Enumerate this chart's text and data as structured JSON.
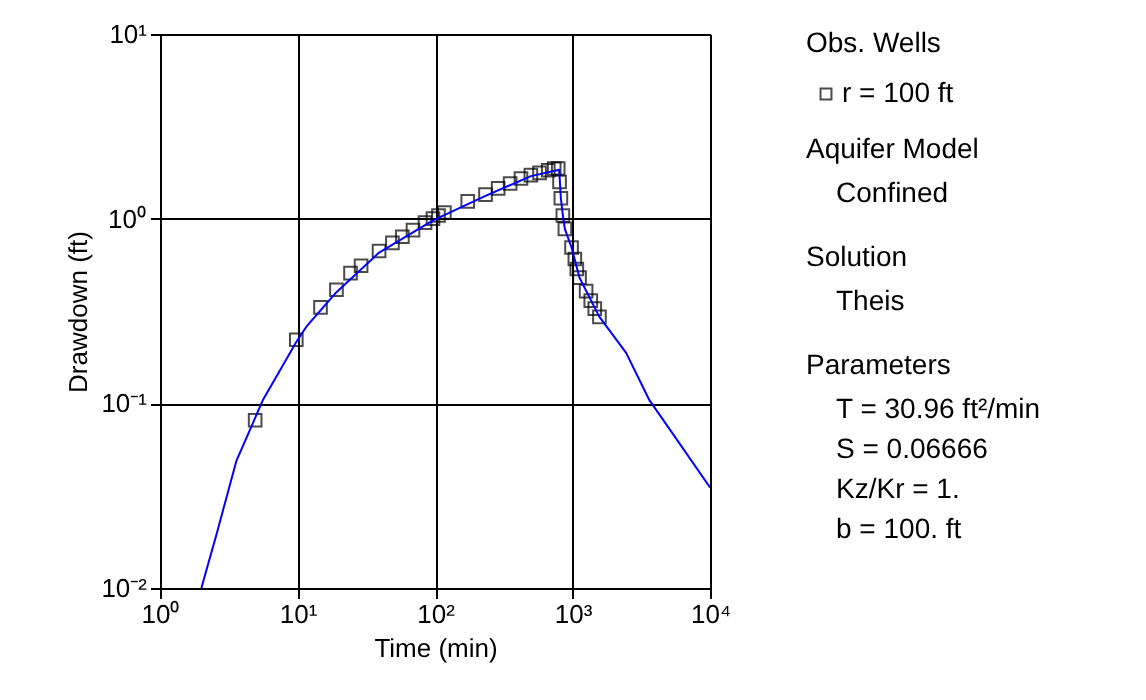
{
  "chart_data": {
    "type": "scatter",
    "xlabel": "Time (min)",
    "ylabel": "Drawdown (ft)",
    "log": "xy",
    "grid": true,
    "legend": "right",
    "legend_title": "Obs. Wells",
    "marker": "square",
    "xlim": [
      1,
      10000
    ],
    "ylim": [
      0.01,
      10
    ],
    "xticks": [
      {
        "value": 1,
        "label": "10⁰"
      },
      {
        "value": 10,
        "label": "10¹"
      },
      {
        "value": 100,
        "label": "10²"
      },
      {
        "value": 1000,
        "label": "10³"
      },
      {
        "value": 10000,
        "label": "10⁴"
      }
    ],
    "yticks": [
      {
        "value": 0.01,
        "label": "10⁻²"
      },
      {
        "value": 0.1,
        "label": "10⁻¹"
      },
      {
        "value": 1,
        "label": "10⁰"
      },
      {
        "value": 10,
        "label": "10¹"
      }
    ],
    "series": [
      {
        "name": "r = 100 ft",
        "color": "#000000",
        "x": [
          4.92,
          9.8,
          14.7,
          19.2,
          24.3,
          29.0,
          39.2,
          49.0,
          57.9,
          69.2,
          84.6,
          96.7,
          106,
          117,
          173,
          233,
          288,
          352,
          422,
          498,
          576,
          666,
          736,
          787,
          805,
          823,
          851,
          880,
          984,
          1040,
          1075,
          1125,
          1256,
          1358,
          1452,
          1570
        ],
        "values": [
          0.081,
          0.221,
          0.331,
          0.412,
          0.507,
          0.556,
          0.668,
          0.74,
          0.798,
          0.867,
          0.951,
          1.0,
          1.04,
          1.08,
          1.24,
          1.35,
          1.46,
          1.55,
          1.65,
          1.72,
          1.77,
          1.83,
          1.87,
          1.87,
          1.58,
          1.29,
          1.04,
          0.881,
          0.698,
          0.605,
          0.534,
          0.479,
          0.405,
          0.36,
          0.326,
          0.294
        ]
      },
      {
        "type": "line",
        "color": "#0000ff",
        "marker": "none",
        "x": [
          2.0,
          2.58,
          3.6,
          5.63,
          9.8,
          11.6,
          19.2,
          39.2,
          96.7,
          233,
          498,
          800,
          823,
          851,
          880,
          984,
          1125,
          1570,
          2455,
          3625,
          5355,
          10000
        ],
        "values": [
          0.01,
          0.0196,
          0.049,
          0.105,
          0.215,
          0.26,
          0.4,
          0.655,
          0.98,
          1.33,
          1.7,
          1.84,
          1.29,
          1.04,
          0.881,
          0.698,
          0.479,
          0.294,
          0.1875,
          0.104,
          0.0686,
          0.035
        ]
      }
    ],
    "annotations": [
      "Aquifer Model",
      "Confined",
      "Solution",
      "Theis",
      "Parameters",
      "T       = 30.96 ft²/min",
      "S       = 0.06666",
      "Kz/Kr = 1.",
      "b       = 100. ft"
    ]
  }
}
